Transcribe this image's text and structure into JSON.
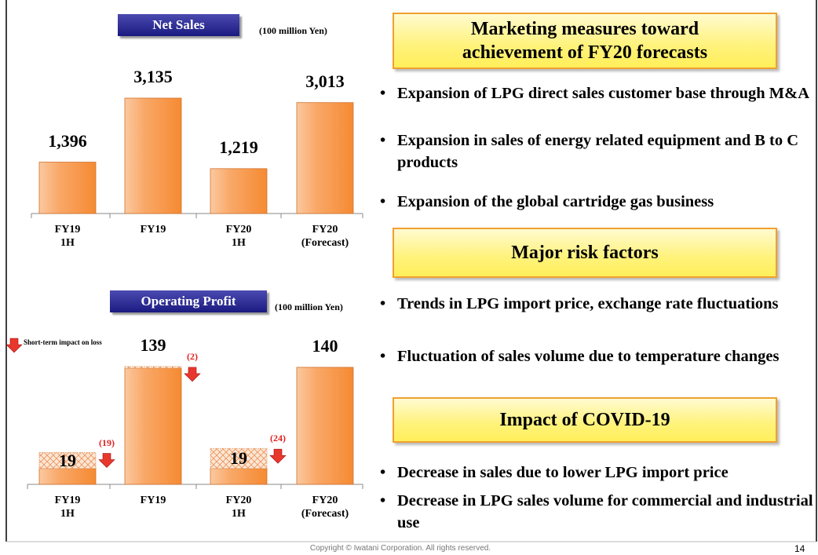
{
  "chart_data": [
    {
      "type": "bar",
      "title": "Net Sales",
      "unit": "(100 million Yen)",
      "categories": [
        "FY19\n1H",
        "FY19",
        "FY20\n1H",
        "FY20\n(Forecast)"
      ],
      "values": [
        1396,
        3135,
        1219,
        3013
      ],
      "value_labels": [
        "1,396",
        "3,135",
        "1,219",
        "3,013"
      ],
      "color": "#f7923f"
    },
    {
      "type": "bar",
      "title": "Operating Profit",
      "unit": "(100 million Yen)",
      "categories": [
        "FY19\n1H",
        "FY19",
        "FY20\n1H",
        "FY20\n(Forecast)"
      ],
      "series": [
        {
          "color": "#f7923f",
          "values": [
            19,
            139,
            19,
            140
          ]
        },
        {
          "name": "Short-term impact on loss",
          "color": "#f4b183",
          "values": [
            19,
            2,
            24,
            null
          ],
          "value_labels": [
            "(19)",
            "(2)",
            "(24)",
            null
          ]
        }
      ]
    }
  ],
  "sections": [
    {
      "title": "Marketing measures toward achievement of FY20 forecasts",
      "bullets": [
        "Expansion of LPG direct sales customer base through M&A",
        "Expansion in sales of   energy related equipment and B to C products",
        "Expansion of the global cartridge gas business"
      ]
    },
    {
      "title": "Major risk factors",
      "bullets": [
        "Trends in LPG import price, exchange rate fluctuations",
        "Fluctuation of sales volume due to temperature changes"
      ]
    },
    {
      "title": "Impact of COVID-19",
      "bullets": [
        "Decrease in sales due to lower LPG import price",
        "Decrease in LPG sales volume for commercial and industrial use"
      ]
    }
  ],
  "footer": {
    "copyright": "Copyright © Iwatani Corporation. All rights reserved.",
    "page": "14"
  }
}
